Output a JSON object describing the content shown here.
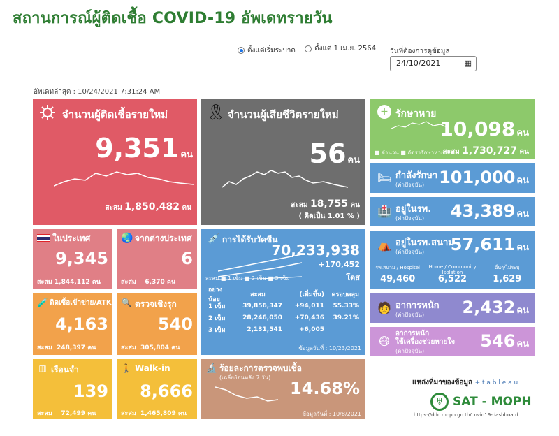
{
  "title": "สถานการณ์ผู้ติดเชื้อ COVID-19 อัพเดทรายวัน",
  "controls": {
    "radio1": "ตั้งแต่เริ่มระบาด",
    "radio2": "ตั้งแต่ 1 เม.ย. 2564",
    "date_label": "วันที่ต้องการดูข้อมูล",
    "date_value": "24/10/2021"
  },
  "updated": "อัพเดทล่าสุด : 10/24/2021 7:31:24 AM",
  "new_cases": {
    "label": "จำนวนผู้ติดเชื้อรายใหม่",
    "value": "9,351",
    "unit": "คน",
    "total_label": "สะสม",
    "total": "1,850,482",
    "total_unit": "คน"
  },
  "deaths": {
    "label": "จำนวนผู้เสียชีวิตรายใหม่",
    "value": "56",
    "unit": "คน",
    "total_label": "สะสม",
    "total": "18,755",
    "total_unit": "คน",
    "pct_label": "( คิดเป็น",
    "pct": "1.01 % )"
  },
  "recovered": {
    "label": "รักษาหาย",
    "value": "10,098",
    "unit": "คน",
    "legend1": "จำนวน",
    "legend2": "อัตรารักษาหาย",
    "total_label": "สะสม",
    "total": "1,730,727",
    "total_unit": "คน"
  },
  "treating": {
    "label": "กำลังรักษา",
    "sub": "(ค่าปัจจุบัน)",
    "value": "101,000",
    "unit": "คน"
  },
  "hospital": {
    "label": "อยู่ในรพ.",
    "sub": "(ค่าปัจจุบัน)",
    "value": "43,389",
    "unit": "คน"
  },
  "field_hospital": {
    "label": "อยู่ในรพ.สนาม",
    "sub": "(ค่าปัจจุบัน)",
    "value": "57,611",
    "unit": "คน",
    "cols": [
      {
        "label": "รพ.สนาม / Hospitel",
        "value": "49,460"
      },
      {
        "label": "Home / Community Isolation",
        "value": "6,522"
      },
      {
        "label": "อื่นๆ/ไม่ระบุ",
        "value": "1,629"
      }
    ]
  },
  "severe": {
    "label": "อาการหนัก",
    "sub": "(ค่าปัจจุบัน)",
    "value": "2,432",
    "unit": "คน"
  },
  "ventilator": {
    "label1": "อาการหนัก",
    "label2": "ใช้เครื่องช่วยหายใจ",
    "sub": "(ค่าปัจจุบัน)",
    "value": "546",
    "unit": "คน"
  },
  "domestic": {
    "label": "ในประเทศ",
    "value": "9,345",
    "total_label": "สะสม",
    "total": "1,844,112",
    "total_unit": "คน"
  },
  "abroad": {
    "label": "จากต่างประเทศ",
    "value": "6",
    "total_label": "สะสม",
    "total": "6,370",
    "total_unit": "คน"
  },
  "atk": {
    "label": "ติดเชื้อเข้าข่าย/ATK",
    "value": "4,163",
    "total_label": "สะสม",
    "total": "248,397",
    "total_unit": "คน"
  },
  "proactive": {
    "label": "ตรวจเชิงรุก",
    "value": "540",
    "total_label": "สะสม",
    "total": "305,804",
    "total_unit": "คน"
  },
  "prison": {
    "label": "เรือนจำ",
    "value": "139",
    "total_label": "สะสม",
    "total": "72,499",
    "total_unit": "คน"
  },
  "walkin": {
    "label": "Walk-in",
    "value": "8,666",
    "total_label": "สะสม",
    "total": "1,465,809",
    "total_unit": "คน"
  },
  "vaccine": {
    "label": "การได้รับวัคซีน",
    "total": "70,233,938",
    "increase": "+170,452",
    "unit": "โดส",
    "legend_label": "สะสม",
    "legend": [
      "1 เข็ม",
      "2 เข็ม",
      "3 เข็ม"
    ],
    "headers": [
      "อย่างน้อย",
      "สะสม",
      "(เพิ่มขึ้น)",
      "ครอบคลุม"
    ],
    "rows": [
      [
        "1 เข็ม",
        "39,856,347",
        "+94,011",
        "55.33%"
      ],
      [
        "2 เข็ม",
        "28,246,050",
        "+70,436",
        "39.21%"
      ],
      [
        "3 เข็ม",
        "2,131,541",
        "+6,005",
        ""
      ]
    ],
    "data_date": "ข้อมูลวันที่ : 10/23/2021"
  },
  "positivity": {
    "label": "ร้อยละการตรวจพบเชื้อ",
    "sub": "(เฉลี่ยย้อนหลัง 7 วัน)",
    "value": "14.68%",
    "data_date": "ข้อมูลวันที่ : 10/8/2021"
  },
  "source": {
    "label": "แหล่งที่มาของข้อมูล",
    "tableau": "+ t a b l e a u",
    "name": "SAT - MOPH",
    "url": "https://ddc.moph.go.th/covid19-dashboard"
  },
  "colors": {
    "red": "#e05a66",
    "grey": "#6e6e6e",
    "green": "#8dc96b",
    "blue": "#5b9bd5",
    "purple": "#8f89cf",
    "orange": "#f2a24b",
    "yellow": "#f4bf3a",
    "tan": "#c9967a"
  }
}
